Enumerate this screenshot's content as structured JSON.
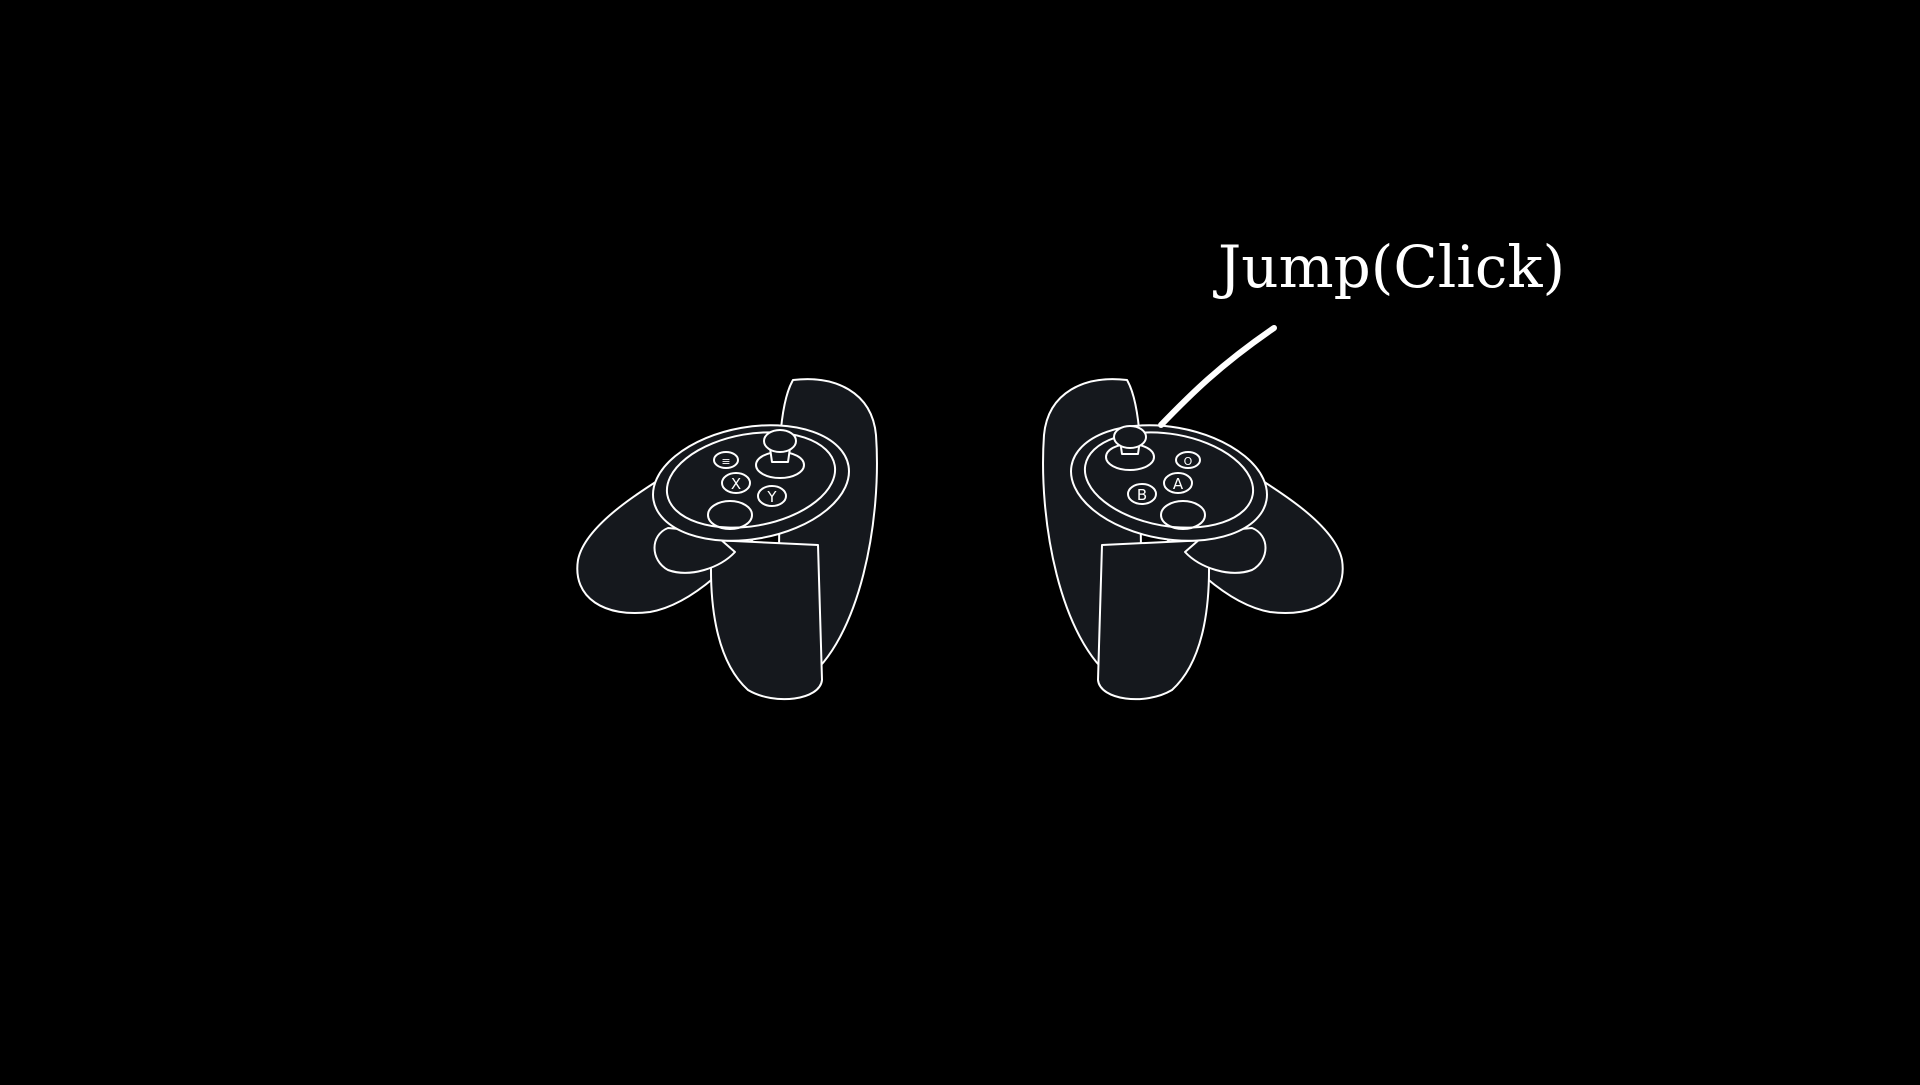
{
  "diagram": {
    "background_color": "#000000",
    "line_color": "#ffffff",
    "body_color": "#15181d",
    "callout": {
      "label": "Jump(Click)",
      "target": "right-controller-thumbstick"
    },
    "left_controller": {
      "buttons": [
        {
          "id": "menu",
          "glyph": "≡"
        },
        {
          "id": "x",
          "glyph": "X"
        },
        {
          "id": "y",
          "glyph": "Y"
        }
      ]
    },
    "right_controller": {
      "buttons": [
        {
          "id": "oculus",
          "glyph": "O"
        },
        {
          "id": "a",
          "glyph": "A"
        },
        {
          "id": "b",
          "glyph": "B"
        }
      ]
    }
  }
}
